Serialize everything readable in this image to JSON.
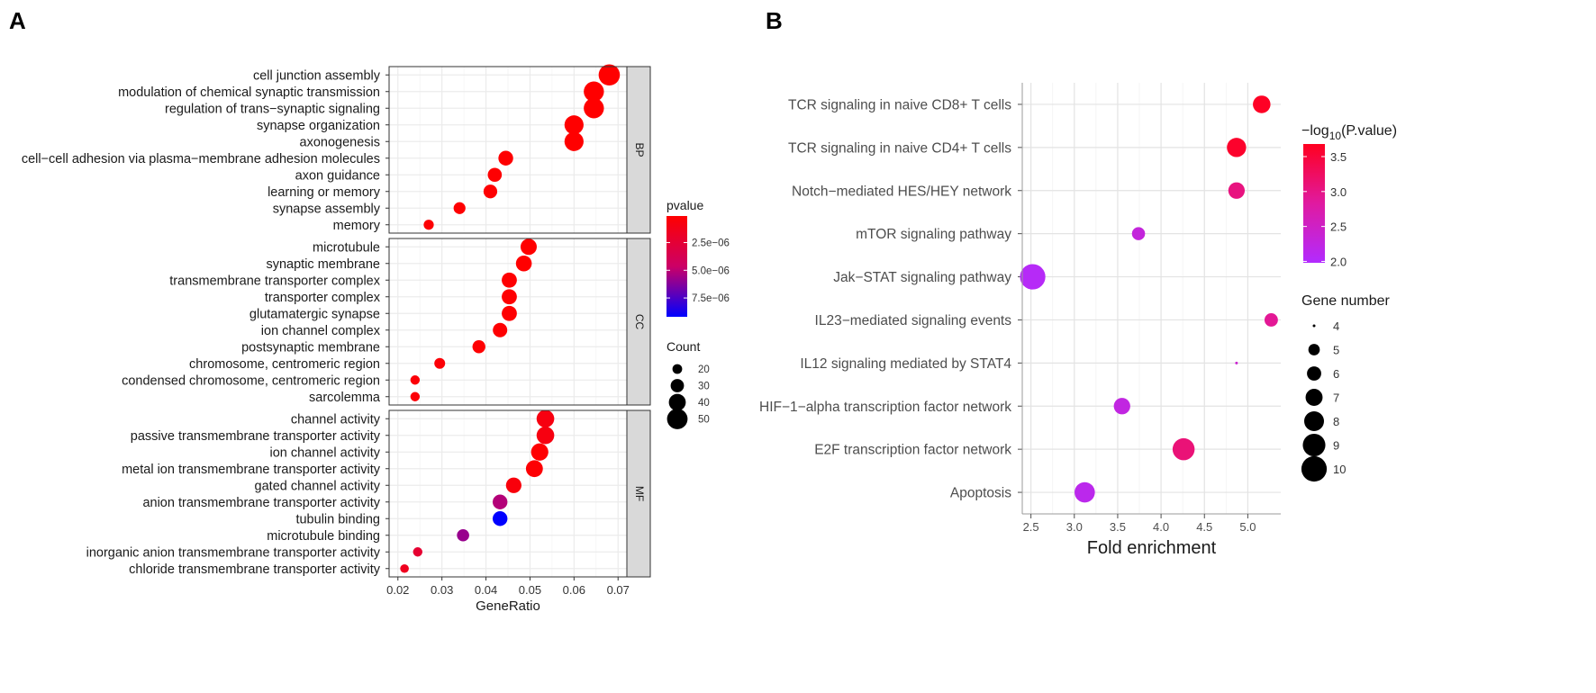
{
  "panels": {
    "a_label": "A",
    "b_label": "B"
  },
  "chart_data": [
    {
      "type": "scatter",
      "panel": "A",
      "xlabel": "GeneRatio",
      "ylabel": "",
      "xlim": [
        0.018,
        0.072
      ],
      "xticks": [
        0.02,
        0.03,
        0.04,
        0.05,
        0.06,
        0.07
      ],
      "xtick_labels": [
        "0.02",
        "0.03",
        "0.04",
        "0.05",
        "0.06",
        "0.07"
      ],
      "grid": true,
      "color_legend": {
        "title": "pvalue",
        "tick_labels": [
          "2.5e−06",
          "5.0e−06",
          "7.5e−06"
        ],
        "tick_values": [
          2.5e-06,
          5e-06,
          7.5e-06
        ],
        "range": [
          1e-07,
          9.2e-06
        ],
        "low_color": "#ff0000",
        "high_color": "#0000ff"
      },
      "size_legend": {
        "title": "Count",
        "labels": [
          "20",
          "30",
          "40",
          "50"
        ],
        "values": [
          20,
          30,
          40,
          50
        ]
      },
      "facets": [
        {
          "name": "BP",
          "terms": [
            {
              "term": "cell junction assembly",
              "gene_ratio": 0.068,
              "count": 52,
              "pvalue": 1e-07
            },
            {
              "term": "modulation of chemical synaptic transmission",
              "gene_ratio": 0.0645,
              "count": 49,
              "pvalue": 1e-07
            },
            {
              "term": "regulation of trans−synaptic signaling",
              "gene_ratio": 0.0645,
              "count": 49,
              "pvalue": 1e-07
            },
            {
              "term": "synapse organization",
              "gene_ratio": 0.06,
              "count": 46,
              "pvalue": 1e-07
            },
            {
              "term": "axonogenesis",
              "gene_ratio": 0.06,
              "count": 46,
              "pvalue": 1e-07
            },
            {
              "term": "cell−cell adhesion via plasma−membrane adhesion molecules",
              "gene_ratio": 0.0445,
              "count": 34,
              "pvalue": 2e-07
            },
            {
              "term": "axon guidance",
              "gene_ratio": 0.042,
              "count": 32,
              "pvalue": 2e-07
            },
            {
              "term": "learning or memory",
              "gene_ratio": 0.041,
              "count": 31,
              "pvalue": 2e-07
            },
            {
              "term": "synapse assembly",
              "gene_ratio": 0.034,
              "count": 26,
              "pvalue": 2e-07
            },
            {
              "term": "memory",
              "gene_ratio": 0.027,
              "count": 21,
              "pvalue": 3e-07
            }
          ]
        },
        {
          "name": "CC",
          "terms": [
            {
              "term": "microtubule",
              "gene_ratio": 0.0497,
              "count": 38,
              "pvalue": 1e-07
            },
            {
              "term": "synaptic membrane",
              "gene_ratio": 0.0486,
              "count": 37,
              "pvalue": 1e-07
            },
            {
              "term": "transmembrane transporter complex",
              "gene_ratio": 0.0453,
              "count": 35,
              "pvalue": 2e-07
            },
            {
              "term": "transporter complex",
              "gene_ratio": 0.0453,
              "count": 35,
              "pvalue": 2e-07
            },
            {
              "term": "glutamatergic synapse",
              "gene_ratio": 0.0453,
              "count": 35,
              "pvalue": 2e-07
            },
            {
              "term": "ion channel complex",
              "gene_ratio": 0.0432,
              "count": 33,
              "pvalue": 2e-07
            },
            {
              "term": "postsynaptic membrane",
              "gene_ratio": 0.0384,
              "count": 29,
              "pvalue": 2e-07
            },
            {
              "term": "chromosome, centromeric region",
              "gene_ratio": 0.0295,
              "count": 23,
              "pvalue": 4e-07
            },
            {
              "term": "condensed chromosome, centromeric region",
              "gene_ratio": 0.0239,
              "count": 19,
              "pvalue": 4e-07
            },
            {
              "term": "sarcolemma",
              "gene_ratio": 0.0239,
              "count": 19,
              "pvalue": 4e-07
            }
          ]
        },
        {
          "name": "MF",
          "terms": [
            {
              "term": "channel activity",
              "gene_ratio": 0.0535,
              "count": 42,
              "pvalue": 8e-07
            },
            {
              "term": "passive transmembrane transporter activity",
              "gene_ratio": 0.0535,
              "count": 42,
              "pvalue": 8e-07
            },
            {
              "term": "ion channel activity",
              "gene_ratio": 0.0522,
              "count": 41,
              "pvalue": 2e-07
            },
            {
              "term": "metal ion transmembrane transporter activity",
              "gene_ratio": 0.051,
              "count": 40,
              "pvalue": 3e-07
            },
            {
              "term": "gated channel activity",
              "gene_ratio": 0.0463,
              "count": 36,
              "pvalue": 6e-07
            },
            {
              "term": "anion transmembrane transporter activity",
              "gene_ratio": 0.0432,
              "count": 34,
              "pvalue": 5.2e-06
            },
            {
              "term": "tubulin binding",
              "gene_ratio": 0.0432,
              "count": 34,
              "pvalue": 9.2e-06
            },
            {
              "term": "microtubule binding",
              "gene_ratio": 0.0348,
              "count": 27,
              "pvalue": 5.8e-06
            },
            {
              "term": "inorganic anion transmembrane transporter activity",
              "gene_ratio": 0.0245,
              "count": 19,
              "pvalue": 2.3e-06
            },
            {
              "term": "chloride transmembrane transporter activity",
              "gene_ratio": 0.0215,
              "count": 17,
              "pvalue": 1.5e-06
            }
          ]
        }
      ]
    },
    {
      "type": "scatter",
      "panel": "B",
      "xlabel": "Fold enrichment",
      "ylabel": "",
      "xlim": [
        2.4,
        5.38
      ],
      "xticks": [
        2.5,
        3.0,
        3.5,
        4.0,
        4.5,
        5.0
      ],
      "xtick_labels": [
        "2.5",
        "3.0",
        "3.5",
        "4.0",
        "4.5",
        "5.0"
      ],
      "grid": true,
      "color_legend": {
        "title_prefix": "−log",
        "title_sub": "10",
        "title_suffix": "(P.value)",
        "tick_labels": [
          "3.5",
          "3.0",
          "2.5",
          "2.0"
        ],
        "tick_values": [
          3.5,
          3.0,
          2.5,
          2.0
        ],
        "range": [
          1.98,
          3.68
        ],
        "low_color": "#b22bff",
        "high_color": "#ff0020"
      },
      "size_legend": {
        "title": "Gene number",
        "labels": [
          "4",
          "5",
          "6",
          "7",
          "8",
          "9",
          "10"
        ],
        "values": [
          4,
          5,
          6,
          7,
          8,
          9,
          10
        ]
      },
      "terms": [
        {
          "term": "TCR signaling in naive CD8+ T cells",
          "fold_enrichment": 5.16,
          "gene_number": 7.2,
          "neg_log10_p": 3.65
        },
        {
          "term": "TCR signaling in naive CD4+ T cells",
          "fold_enrichment": 4.87,
          "gene_number": 7.8,
          "neg_log10_p": 3.6
        },
        {
          "term": "Notch−mediated HES/HEY network",
          "fold_enrichment": 4.87,
          "gene_number": 6.8,
          "neg_log10_p": 3.05
        },
        {
          "term": "mTOR signaling pathway",
          "fold_enrichment": 3.74,
          "gene_number": 5.6,
          "neg_log10_p": 2.3
        },
        {
          "term": "Jak−STAT signaling pathway",
          "fold_enrichment": 2.52,
          "gene_number": 10,
          "neg_log10_p": 2.05
        },
        {
          "term": "IL23−mediated signaling events",
          "fold_enrichment": 5.27,
          "gene_number": 5.7,
          "neg_log10_p": 2.9
        },
        {
          "term": "IL12 signaling mediated by STAT4",
          "fold_enrichment": 4.87,
          "gene_number": 4,
          "neg_log10_p": 2.4
        },
        {
          "term": "HIF−1−alpha transcription factor network",
          "fold_enrichment": 3.55,
          "gene_number": 6.8,
          "neg_log10_p": 2.25
        },
        {
          "term": "E2F transcription factor network",
          "fold_enrichment": 4.26,
          "gene_number": 8.8,
          "neg_log10_p": 3.1
        },
        {
          "term": "Apoptosis",
          "fold_enrichment": 3.12,
          "gene_number": 8.2,
          "neg_log10_p": 2.15
        }
      ]
    }
  ]
}
